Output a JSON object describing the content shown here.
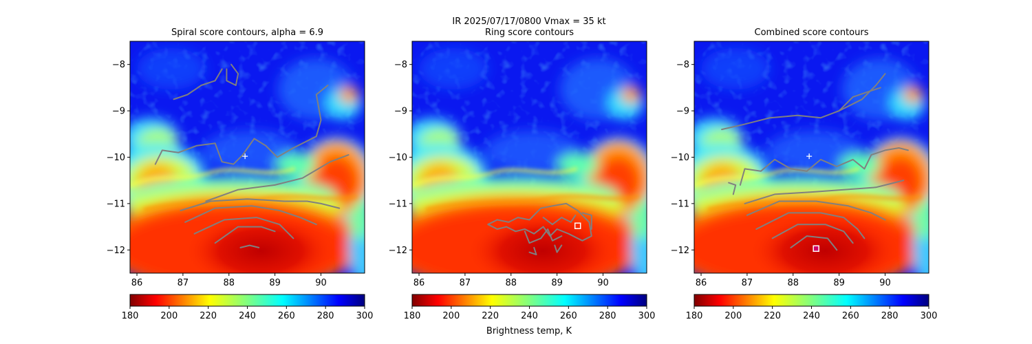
{
  "figure": {
    "suptitle_line1": "IR  2025/07/17/0800    Vmax = 35 kt",
    "colorbar_label": "Brightness temp, K"
  },
  "chart_data": [
    {
      "type": "heatmap",
      "title": "Spiral score contours, alpha =  6.9",
      "xlim": [
        85.85,
        90.95
      ],
      "ylim": [
        -12.5,
        -7.5
      ],
      "xticks": [
        "86",
        "87",
        "88",
        "89",
        "90"
      ],
      "yticks": [
        "-8",
        "-9",
        "-10",
        "-11",
        "-12"
      ],
      "colorbar": {
        "range": [
          180,
          300
        ],
        "ticks": [
          "180",
          "200",
          "220",
          "240",
          "260",
          "280",
          "300"
        ],
        "colormap": "jet_r"
      },
      "center_marker": {
        "symbol": "+",
        "lon": 88.35,
        "lat": -9.98
      },
      "contours": [
        [
          [
            86.8,
            -8.75
          ],
          [
            87.1,
            -8.65
          ],
          [
            87.4,
            -8.45
          ],
          [
            87.7,
            -8.35
          ],
          [
            87.85,
            -8.1
          ]
        ],
        [
          [
            88.05,
            -8.0
          ],
          [
            88.2,
            -8.2
          ],
          [
            88.15,
            -8.45
          ],
          [
            87.95,
            -8.35
          ],
          [
            87.95,
            -8.1
          ]
        ],
        [
          [
            86.4,
            -10.15
          ],
          [
            86.55,
            -9.85
          ],
          [
            86.9,
            -9.9
          ],
          [
            87.3,
            -9.75
          ],
          [
            87.7,
            -9.7
          ],
          [
            87.85,
            -10.1
          ],
          [
            88.1,
            -10.15
          ],
          [
            88.3,
            -9.95
          ],
          [
            88.55,
            -9.6
          ],
          [
            88.8,
            -9.75
          ],
          [
            89.05,
            -10.0
          ],
          [
            89.4,
            -9.8
          ],
          [
            89.9,
            -9.55
          ],
          [
            90.0,
            -9.2
          ],
          [
            89.9,
            -8.65
          ],
          [
            90.15,
            -8.45
          ]
        ],
        [
          [
            87.5,
            -10.95
          ],
          [
            88.2,
            -10.7
          ],
          [
            89.0,
            -10.6
          ],
          [
            89.6,
            -10.45
          ],
          [
            90.2,
            -10.1
          ],
          [
            90.6,
            -9.95
          ]
        ],
        [
          [
            86.95,
            -11.15
          ],
          [
            87.6,
            -10.95
          ],
          [
            88.4,
            -10.9
          ],
          [
            89.2,
            -10.95
          ],
          [
            89.7,
            -10.95
          ],
          [
            90.0,
            -11.0
          ],
          [
            90.4,
            -11.1
          ]
        ],
        [
          [
            87.05,
            -11.4
          ],
          [
            87.7,
            -11.1
          ],
          [
            88.5,
            -11.05
          ],
          [
            89.1,
            -11.15
          ],
          [
            89.55,
            -11.3
          ],
          [
            89.9,
            -11.45
          ]
        ],
        [
          [
            87.25,
            -11.65
          ],
          [
            87.9,
            -11.35
          ],
          [
            88.6,
            -11.3
          ],
          [
            89.1,
            -11.45
          ],
          [
            89.4,
            -11.75
          ]
        ],
        [
          [
            87.7,
            -11.85
          ],
          [
            88.2,
            -11.5
          ],
          [
            88.7,
            -11.5
          ],
          [
            89.0,
            -11.6
          ]
        ],
        [
          [
            88.25,
            -11.95
          ],
          [
            88.45,
            -11.9
          ],
          [
            88.65,
            -11.95
          ]
        ]
      ]
    },
    {
      "type": "heatmap",
      "title": "Ring score contours",
      "xlim": [
        85.85,
        90.95
      ],
      "ylim": [
        -12.5,
        -7.5
      ],
      "xticks": [
        "86",
        "87",
        "88",
        "89",
        "90"
      ],
      "yticks": [
        "-8",
        "-9",
        "-10",
        "-11",
        "-12"
      ],
      "colorbar": {
        "range": [
          180,
          300
        ],
        "ticks": [
          "180",
          "200",
          "220",
          "240",
          "260",
          "280",
          "300"
        ],
        "colormap": "jet_r"
      },
      "square_marker": {
        "lon": 89.45,
        "lat": -11.48
      },
      "contours": [
        [
          [
            87.5,
            -11.45
          ],
          [
            87.7,
            -11.35
          ],
          [
            87.95,
            -11.4
          ],
          [
            88.15,
            -11.3
          ],
          [
            88.4,
            -11.35
          ],
          [
            88.65,
            -11.1
          ],
          [
            88.9,
            -11.05
          ],
          [
            89.2,
            -11.0
          ],
          [
            89.45,
            -11.15
          ],
          [
            89.7,
            -11.4
          ],
          [
            89.75,
            -11.7
          ],
          [
            89.55,
            -11.8
          ],
          [
            89.25,
            -11.65
          ],
          [
            89.0,
            -11.55
          ],
          [
            88.85,
            -11.7
          ],
          [
            88.7,
            -11.5
          ],
          [
            88.5,
            -11.65
          ],
          [
            88.3,
            -11.55
          ],
          [
            88.1,
            -11.6
          ],
          [
            87.9,
            -11.5
          ],
          [
            87.7,
            -11.55
          ],
          [
            87.5,
            -11.45
          ]
        ],
        [
          [
            88.3,
            -11.6
          ],
          [
            88.4,
            -11.85
          ],
          [
            88.65,
            -11.75
          ],
          [
            88.8,
            -11.55
          ],
          [
            88.9,
            -11.8
          ],
          [
            89.1,
            -11.7
          ]
        ],
        [
          [
            88.4,
            -12.05
          ],
          [
            88.55,
            -12.1
          ],
          [
            88.5,
            -11.95
          ]
        ],
        [
          [
            88.95,
            -11.9
          ],
          [
            89.0,
            -12.05
          ],
          [
            89.1,
            -11.9
          ]
        ],
        [
          [
            88.7,
            -11.3
          ],
          [
            88.9,
            -11.45
          ],
          [
            89.1,
            -11.3
          ],
          [
            89.3,
            -11.4
          ],
          [
            89.4,
            -11.25
          ]
        ],
        [
          [
            89.55,
            -11.2
          ],
          [
            89.75,
            -11.25
          ],
          [
            89.75,
            -11.55
          ]
        ]
      ]
    },
    {
      "type": "heatmap",
      "title": "Combined score contours",
      "xlim": [
        85.85,
        90.95
      ],
      "ylim": [
        -12.5,
        -7.5
      ],
      "xticks": [
        "86",
        "87",
        "88",
        "89",
        "90"
      ],
      "yticks": [
        "-8",
        "-9",
        "-10",
        "-11",
        "-12"
      ],
      "colorbar": {
        "range": [
          180,
          300
        ],
        "ticks": [
          "180",
          "200",
          "220",
          "240",
          "260",
          "280",
          "300"
        ],
        "colormap": "jet_r"
      },
      "center_marker": {
        "symbol": "+",
        "lon": 88.35,
        "lat": -9.98
      },
      "square_marker": {
        "lon": 88.5,
        "lat": -11.97
      },
      "contours": [
        [
          [
            86.45,
            -9.4
          ],
          [
            86.9,
            -9.3
          ],
          [
            87.5,
            -9.15
          ],
          [
            88.1,
            -9.1
          ],
          [
            88.6,
            -9.15
          ],
          [
            89.0,
            -9.0
          ],
          [
            89.3,
            -8.7
          ],
          [
            89.6,
            -8.6
          ],
          [
            89.9,
            -8.5
          ]
        ],
        [
          [
            89.0,
            -9.0
          ],
          [
            89.5,
            -8.75
          ],
          [
            89.8,
            -8.45
          ],
          [
            90.0,
            -8.2
          ]
        ],
        [
          [
            86.85,
            -10.6
          ],
          [
            86.95,
            -10.25
          ],
          [
            87.3,
            -10.3
          ],
          [
            87.6,
            -10.05
          ],
          [
            87.95,
            -10.25
          ],
          [
            88.3,
            -10.3
          ],
          [
            88.6,
            -10.05
          ],
          [
            88.95,
            -10.2
          ],
          [
            89.3,
            -10.05
          ],
          [
            89.55,
            -10.25
          ],
          [
            89.7,
            -9.95
          ],
          [
            90.0,
            -9.85
          ],
          [
            90.3,
            -9.8
          ],
          [
            90.5,
            -9.85
          ]
        ],
        [
          [
            86.6,
            -10.55
          ],
          [
            86.75,
            -10.6
          ],
          [
            86.7,
            -10.8
          ]
        ],
        [
          [
            86.95,
            -11.0
          ],
          [
            87.6,
            -10.8
          ],
          [
            88.4,
            -10.75
          ],
          [
            89.1,
            -10.7
          ],
          [
            89.8,
            -10.65
          ],
          [
            90.2,
            -10.55
          ],
          [
            90.4,
            -10.5
          ]
        ],
        [
          [
            87.0,
            -11.25
          ],
          [
            87.7,
            -10.95
          ],
          [
            88.5,
            -10.95
          ],
          [
            89.2,
            -11.05
          ],
          [
            89.7,
            -11.2
          ],
          [
            90.0,
            -11.35
          ]
        ],
        [
          [
            87.2,
            -11.55
          ],
          [
            87.9,
            -11.2
          ],
          [
            88.6,
            -11.2
          ],
          [
            89.1,
            -11.3
          ],
          [
            89.4,
            -11.55
          ],
          [
            89.55,
            -11.75
          ]
        ],
        [
          [
            87.55,
            -11.75
          ],
          [
            88.1,
            -11.45
          ],
          [
            88.7,
            -11.45
          ],
          [
            89.1,
            -11.6
          ],
          [
            89.3,
            -11.85
          ]
        ],
        [
          [
            87.95,
            -11.95
          ],
          [
            88.3,
            -11.7
          ],
          [
            88.75,
            -11.75
          ],
          [
            88.95,
            -12.0
          ]
        ]
      ]
    }
  ]
}
